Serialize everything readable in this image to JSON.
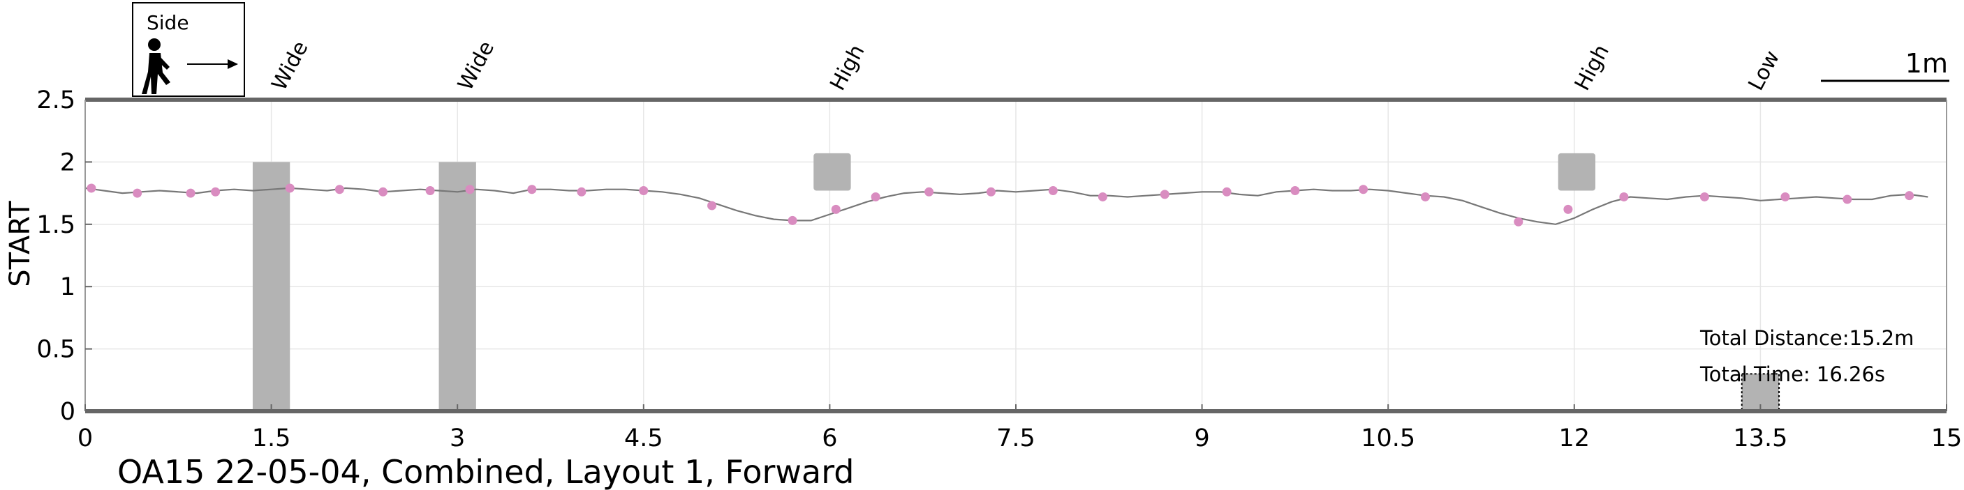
{
  "chart_data": {
    "type": "line",
    "title": "OA15 22-05-04, Combined, Layout 1, Forward",
    "ylabel": "START",
    "xlabel": "",
    "xlim": [
      0,
      15
    ],
    "ylim": [
      0,
      2.5
    ],
    "xticks": [
      "0",
      "1.5",
      "3",
      "4.5",
      "6",
      "7.5",
      "9",
      "10.5",
      "12",
      "13.5",
      "15"
    ],
    "yticks": [
      "0",
      "0.5",
      "1",
      "1.5",
      "2",
      "2.5"
    ],
    "grid": true,
    "line_color": "#777777",
    "marker_color": "#d98cc0",
    "obstacle_color": "#b3b3b3",
    "series": [
      {
        "x": [
          0.0,
          0.15,
          0.3,
          0.45,
          0.6,
          0.75,
          0.9,
          1.05,
          1.2,
          1.35,
          1.5,
          1.65,
          1.8,
          1.95,
          2.1,
          2.25,
          2.4,
          2.55,
          2.7,
          2.85,
          3.0,
          3.15,
          3.3,
          3.45,
          3.6,
          3.75,
          3.9,
          4.05,
          4.2,
          4.35,
          4.5,
          4.65,
          4.8,
          4.95,
          5.1,
          5.25,
          5.4,
          5.55,
          5.7,
          5.85,
          6.0,
          6.15,
          6.3,
          6.45,
          6.6,
          6.75,
          6.9,
          7.05,
          7.2,
          7.35,
          7.5,
          7.65,
          7.8,
          7.95,
          8.1,
          8.25,
          8.4,
          8.55,
          8.7,
          8.85,
          9.0,
          9.15,
          9.3,
          9.45,
          9.6,
          9.75,
          9.9,
          10.05,
          10.2,
          10.35,
          10.5,
          10.65,
          10.8,
          10.95,
          11.1,
          11.25,
          11.4,
          11.55,
          11.7,
          11.85,
          12.0,
          12.15,
          12.3,
          12.45,
          12.6,
          12.75,
          12.9,
          13.05,
          13.2,
          13.35,
          13.5,
          13.65,
          13.8,
          13.95,
          14.1,
          14.25,
          14.4,
          14.55,
          14.7,
          14.85
        ],
        "y": [
          1.79,
          1.77,
          1.75,
          1.76,
          1.77,
          1.76,
          1.75,
          1.77,
          1.78,
          1.77,
          1.78,
          1.79,
          1.78,
          1.77,
          1.79,
          1.78,
          1.76,
          1.77,
          1.78,
          1.77,
          1.76,
          1.78,
          1.77,
          1.75,
          1.78,
          1.78,
          1.77,
          1.77,
          1.78,
          1.78,
          1.77,
          1.76,
          1.74,
          1.71,
          1.66,
          1.61,
          1.57,
          1.54,
          1.53,
          1.53,
          1.58,
          1.63,
          1.68,
          1.72,
          1.75,
          1.76,
          1.75,
          1.74,
          1.75,
          1.77,
          1.76,
          1.77,
          1.78,
          1.76,
          1.73,
          1.73,
          1.72,
          1.73,
          1.74,
          1.75,
          1.76,
          1.76,
          1.74,
          1.73,
          1.76,
          1.77,
          1.78,
          1.77,
          1.77,
          1.78,
          1.77,
          1.75,
          1.73,
          1.72,
          1.69,
          1.64,
          1.59,
          1.55,
          1.52,
          1.5,
          1.55,
          1.62,
          1.68,
          1.72,
          1.71,
          1.7,
          1.72,
          1.73,
          1.72,
          1.71,
          1.69,
          1.7,
          1.71,
          1.72,
          1.71,
          1.7,
          1.7,
          1.73,
          1.74,
          1.72
        ]
      }
    ],
    "markers": {
      "x": [
        0.05,
        0.42,
        0.85,
        1.05,
        1.65,
        2.05,
        2.4,
        2.78,
        3.1,
        3.6,
        4.0,
        4.5,
        5.05,
        5.7,
        6.05,
        6.37,
        6.8,
        7.3,
        7.8,
        8.2,
        8.7,
        9.2,
        9.75,
        10.3,
        10.8,
        11.55,
        11.95,
        12.4,
        13.05,
        13.7,
        14.2,
        14.7
      ],
      "y": [
        1.79,
        1.75,
        1.75,
        1.76,
        1.79,
        1.78,
        1.76,
        1.77,
        1.78,
        1.78,
        1.76,
        1.77,
        1.65,
        1.53,
        1.62,
        1.72,
        1.76,
        1.76,
        1.77,
        1.72,
        1.74,
        1.76,
        1.77,
        1.78,
        1.72,
        1.52,
        1.62,
        1.72,
        1.72,
        1.72,
        1.7,
        1.73
      ]
    },
    "obstacles": [
      {
        "label": "Wide",
        "x": [
          1.35,
          1.65
        ],
        "y": [
          0,
          2.0
        ],
        "label_x": 1.6,
        "kind": "bar"
      },
      {
        "label": "Wide",
        "x": [
          2.85,
          3.15
        ],
        "y": [
          0,
          2.0
        ],
        "label_x": 3.1,
        "kind": "bar"
      },
      {
        "label": "High",
        "x": [
          5.87,
          6.17
        ],
        "y": [
          1.77,
          2.07
        ],
        "label_x": 6.1,
        "kind": "block"
      },
      {
        "label": "High",
        "x": [
          11.87,
          12.17
        ],
        "y": [
          1.77,
          2.07
        ],
        "label_x": 12.1,
        "kind": "block"
      },
      {
        "label": "Low",
        "x": [
          13.35,
          13.65
        ],
        "y": [
          0,
          0.3
        ],
        "label_x": 13.5,
        "kind": "low"
      }
    ],
    "annotations": {
      "scale_label": "1m",
      "legend_label": "Side",
      "total_distance": "Total Distance:15.2m",
      "total_time": "Total Time: 16.26s"
    }
  }
}
